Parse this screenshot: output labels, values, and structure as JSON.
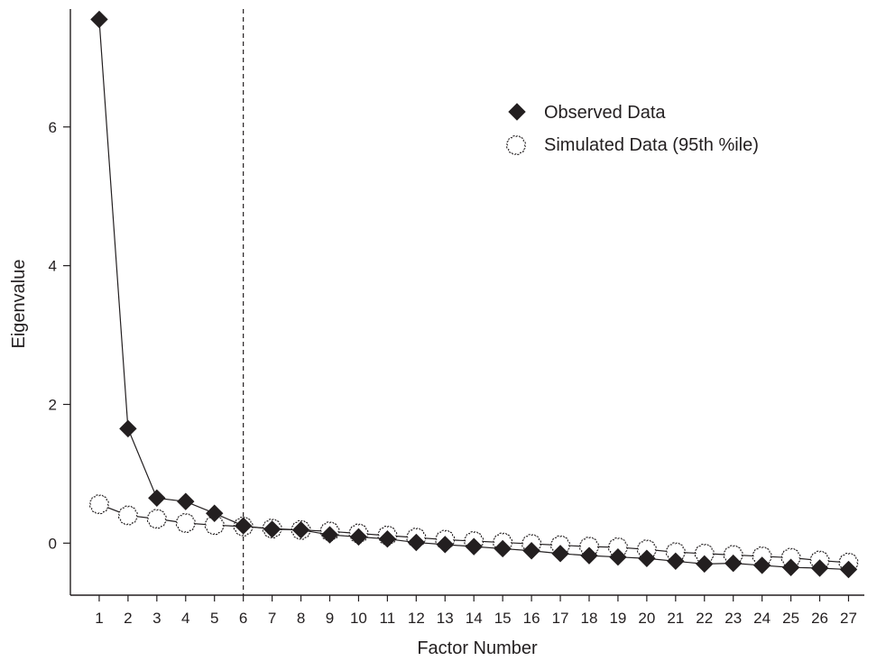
{
  "chart_data": {
    "type": "line",
    "title": "",
    "xlabel": "Factor Number",
    "ylabel": "Eigenvalue",
    "x": [
      1,
      2,
      3,
      4,
      5,
      6,
      7,
      8,
      9,
      10,
      11,
      12,
      13,
      14,
      15,
      16,
      17,
      18,
      19,
      20,
      21,
      22,
      23,
      24,
      25,
      26,
      27
    ],
    "xticks": [
      "1",
      "2",
      "3",
      "4",
      "5",
      "6",
      "7",
      "8",
      "9",
      "10",
      "11",
      "12",
      "13",
      "14",
      "15",
      "16",
      "17",
      "18",
      "19",
      "20",
      "21",
      "22",
      "23",
      "24",
      "25",
      "26",
      "27"
    ],
    "yticks": [
      "0",
      "2",
      "4",
      "6"
    ],
    "xlim": [
      0,
      28.3
    ],
    "ylim": [
      -0.75,
      7.7
    ],
    "cutoff_x": 6,
    "legend_position": "top-right",
    "series": [
      {
        "name": "Observed Data",
        "marker": "diamond",
        "color": "#231f20",
        "values": [
          7.55,
          1.65,
          0.65,
          0.6,
          0.43,
          0.25,
          0.2,
          0.19,
          0.12,
          0.09,
          0.06,
          0.01,
          -0.02,
          -0.05,
          -0.08,
          -0.11,
          -0.15,
          -0.18,
          -0.2,
          -0.22,
          -0.26,
          -0.3,
          -0.29,
          -0.32,
          -0.35,
          -0.36,
          -0.38
        ]
      },
      {
        "name": "Simulated Data (95th %ile)",
        "marker": "circle-open",
        "color": "#231f20",
        "values": [
          0.56,
          0.4,
          0.35,
          0.29,
          0.26,
          0.24,
          0.21,
          0.19,
          0.17,
          0.14,
          0.11,
          0.08,
          0.05,
          0.03,
          0.01,
          -0.01,
          -0.03,
          -0.05,
          -0.06,
          -0.09,
          -0.13,
          -0.15,
          -0.17,
          -0.19,
          -0.21,
          -0.25,
          -0.28
        ]
      }
    ]
  }
}
